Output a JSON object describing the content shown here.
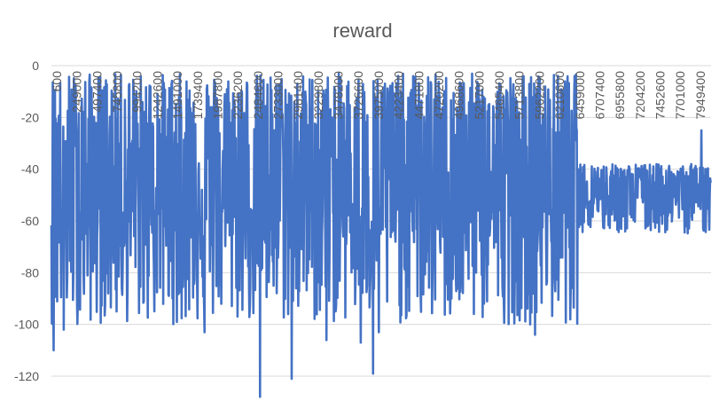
{
  "chart_data": {
    "type": "line",
    "title": "reward",
    "xlabel": "",
    "ylabel": "",
    "ylim": [
      -130,
      0
    ],
    "y_ticks": [
      0,
      -20,
      -40,
      -60,
      -80,
      -100,
      -120
    ],
    "x_tick_labels": [
      "600",
      "249000",
      "497400",
      "745800",
      "994200",
      "1242600",
      "1491000",
      "1739400",
      "1987800",
      "2236200",
      "2484600",
      "2733000",
      "2981400",
      "3229800",
      "3478200",
      "3726600",
      "3975000",
      "4223400",
      "4471800",
      "4720200",
      "4968600",
      "5217000",
      "5465400",
      "5713800",
      "5962200",
      "6210600",
      "6459000",
      "6707400",
      "6955800",
      "7204200",
      "7452600",
      "7701000",
      "7949400"
    ],
    "x_range": [
      600,
      8100000
    ],
    "grid": true,
    "legend": "none",
    "series": [
      {
        "color": "#4472C4",
        "phases": [
          {
            "x_start": 600,
            "x_end": 6459000,
            "center": -55,
            "spread_high": -3,
            "spread_low": -100
          },
          {
            "x_start": 6459000,
            "x_end": 8100000,
            "center": -50,
            "spread_high": -38,
            "spread_low": -65
          }
        ],
        "notable_points": [
          {
            "x": 30000,
            "y": -110
          },
          {
            "x": 150000,
            "y": -102
          },
          {
            "x": 1540000,
            "y": -99
          },
          {
            "x": 1880000,
            "y": -103
          },
          {
            "x": 2560000,
            "y": -128
          },
          {
            "x": 2950000,
            "y": -121
          },
          {
            "x": 3380000,
            "y": -106
          },
          {
            "x": 3800000,
            "y": -107
          },
          {
            "x": 3950000,
            "y": -119
          },
          {
            "x": 4020000,
            "y": -103
          },
          {
            "x": 5940000,
            "y": -104
          },
          {
            "x": 7980000,
            "y": -25
          }
        ]
      }
    ]
  }
}
